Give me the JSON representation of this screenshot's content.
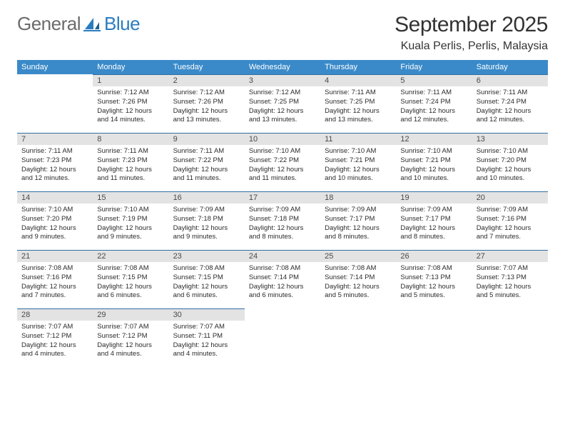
{
  "logo": {
    "text1": "General",
    "text2": "Blue"
  },
  "title": "September 2025",
  "location": "Kuala Perlis, Perlis, Malaysia",
  "header_bg": "#3a8ac9",
  "daynum_bg": "#e3e3e3",
  "rule_color": "#2f6fa3",
  "weekdays": [
    "Sunday",
    "Monday",
    "Tuesday",
    "Wednesday",
    "Thursday",
    "Friday",
    "Saturday"
  ],
  "first_weekday_index": 1,
  "days": [
    {
      "n": 1,
      "sr": "7:12 AM",
      "ss": "7:26 PM",
      "dl": "12 hours and 14 minutes."
    },
    {
      "n": 2,
      "sr": "7:12 AM",
      "ss": "7:26 PM",
      "dl": "12 hours and 13 minutes."
    },
    {
      "n": 3,
      "sr": "7:12 AM",
      "ss": "7:25 PM",
      "dl": "12 hours and 13 minutes."
    },
    {
      "n": 4,
      "sr": "7:11 AM",
      "ss": "7:25 PM",
      "dl": "12 hours and 13 minutes."
    },
    {
      "n": 5,
      "sr": "7:11 AM",
      "ss": "7:24 PM",
      "dl": "12 hours and 12 minutes."
    },
    {
      "n": 6,
      "sr": "7:11 AM",
      "ss": "7:24 PM",
      "dl": "12 hours and 12 minutes."
    },
    {
      "n": 7,
      "sr": "7:11 AM",
      "ss": "7:23 PM",
      "dl": "12 hours and 12 minutes."
    },
    {
      "n": 8,
      "sr": "7:11 AM",
      "ss": "7:23 PM",
      "dl": "12 hours and 11 minutes."
    },
    {
      "n": 9,
      "sr": "7:11 AM",
      "ss": "7:22 PM",
      "dl": "12 hours and 11 minutes."
    },
    {
      "n": 10,
      "sr": "7:10 AM",
      "ss": "7:22 PM",
      "dl": "12 hours and 11 minutes."
    },
    {
      "n": 11,
      "sr": "7:10 AM",
      "ss": "7:21 PM",
      "dl": "12 hours and 10 minutes."
    },
    {
      "n": 12,
      "sr": "7:10 AM",
      "ss": "7:21 PM",
      "dl": "12 hours and 10 minutes."
    },
    {
      "n": 13,
      "sr": "7:10 AM",
      "ss": "7:20 PM",
      "dl": "12 hours and 10 minutes."
    },
    {
      "n": 14,
      "sr": "7:10 AM",
      "ss": "7:20 PM",
      "dl": "12 hours and 9 minutes."
    },
    {
      "n": 15,
      "sr": "7:10 AM",
      "ss": "7:19 PM",
      "dl": "12 hours and 9 minutes."
    },
    {
      "n": 16,
      "sr": "7:09 AM",
      "ss": "7:18 PM",
      "dl": "12 hours and 9 minutes."
    },
    {
      "n": 17,
      "sr": "7:09 AM",
      "ss": "7:18 PM",
      "dl": "12 hours and 8 minutes."
    },
    {
      "n": 18,
      "sr": "7:09 AM",
      "ss": "7:17 PM",
      "dl": "12 hours and 8 minutes."
    },
    {
      "n": 19,
      "sr": "7:09 AM",
      "ss": "7:17 PM",
      "dl": "12 hours and 8 minutes."
    },
    {
      "n": 20,
      "sr": "7:09 AM",
      "ss": "7:16 PM",
      "dl": "12 hours and 7 minutes."
    },
    {
      "n": 21,
      "sr": "7:08 AM",
      "ss": "7:16 PM",
      "dl": "12 hours and 7 minutes."
    },
    {
      "n": 22,
      "sr": "7:08 AM",
      "ss": "7:15 PM",
      "dl": "12 hours and 6 minutes."
    },
    {
      "n": 23,
      "sr": "7:08 AM",
      "ss": "7:15 PM",
      "dl": "12 hours and 6 minutes."
    },
    {
      "n": 24,
      "sr": "7:08 AM",
      "ss": "7:14 PM",
      "dl": "12 hours and 6 minutes."
    },
    {
      "n": 25,
      "sr": "7:08 AM",
      "ss": "7:14 PM",
      "dl": "12 hours and 5 minutes."
    },
    {
      "n": 26,
      "sr": "7:08 AM",
      "ss": "7:13 PM",
      "dl": "12 hours and 5 minutes."
    },
    {
      "n": 27,
      "sr": "7:07 AM",
      "ss": "7:13 PM",
      "dl": "12 hours and 5 minutes."
    },
    {
      "n": 28,
      "sr": "7:07 AM",
      "ss": "7:12 PM",
      "dl": "12 hours and 4 minutes."
    },
    {
      "n": 29,
      "sr": "7:07 AM",
      "ss": "7:12 PM",
      "dl": "12 hours and 4 minutes."
    },
    {
      "n": 30,
      "sr": "7:07 AM",
      "ss": "7:11 PM",
      "dl": "12 hours and 4 minutes."
    }
  ]
}
